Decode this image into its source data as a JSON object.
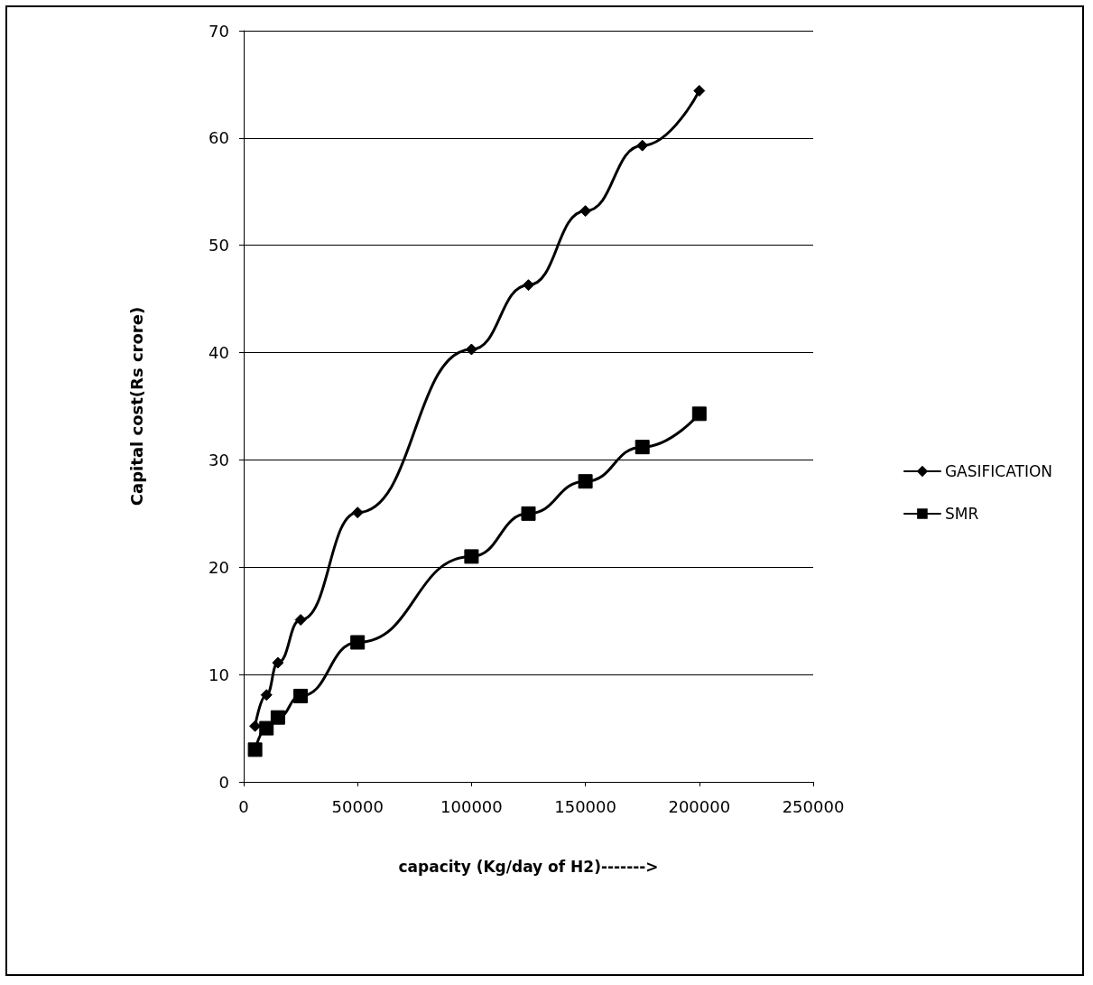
{
  "chart_data": {
    "type": "line",
    "xlabel": "capacity (Kg/day of H2)------->",
    "ylabel": "Capital cost(Rs crore)",
    "series": [
      {
        "name": "GASIFICATION",
        "color": "#000000",
        "marker": "diamond",
        "x": [
          5000,
          10000,
          15000,
          25000,
          50000,
          100000,
          125000,
          150000,
          175000,
          200000
        ],
        "values": [
          5.2,
          8.1,
          11.1,
          15.1,
          25.1,
          40.3,
          46.3,
          53.2,
          59.3,
          64.4
        ]
      },
      {
        "name": "SMR",
        "color": "#000000",
        "marker": "square",
        "x": [
          5000,
          10000,
          15000,
          25000,
          50000,
          100000,
          125000,
          150000,
          175000,
          200000
        ],
        "values": [
          3,
          5,
          6,
          8,
          13,
          21,
          25,
          28,
          31.2,
          34.3
        ]
      }
    ],
    "xlim": [
      0,
      250000
    ],
    "xticks": [
      0,
      50000,
      100000,
      150000,
      200000,
      250000
    ],
    "ylim": [
      0,
      70
    ],
    "yticks": [
      0,
      10,
      20,
      30,
      40,
      50,
      60,
      70
    ],
    "grid": "y",
    "legend": "right",
    "line_style": "solid"
  }
}
